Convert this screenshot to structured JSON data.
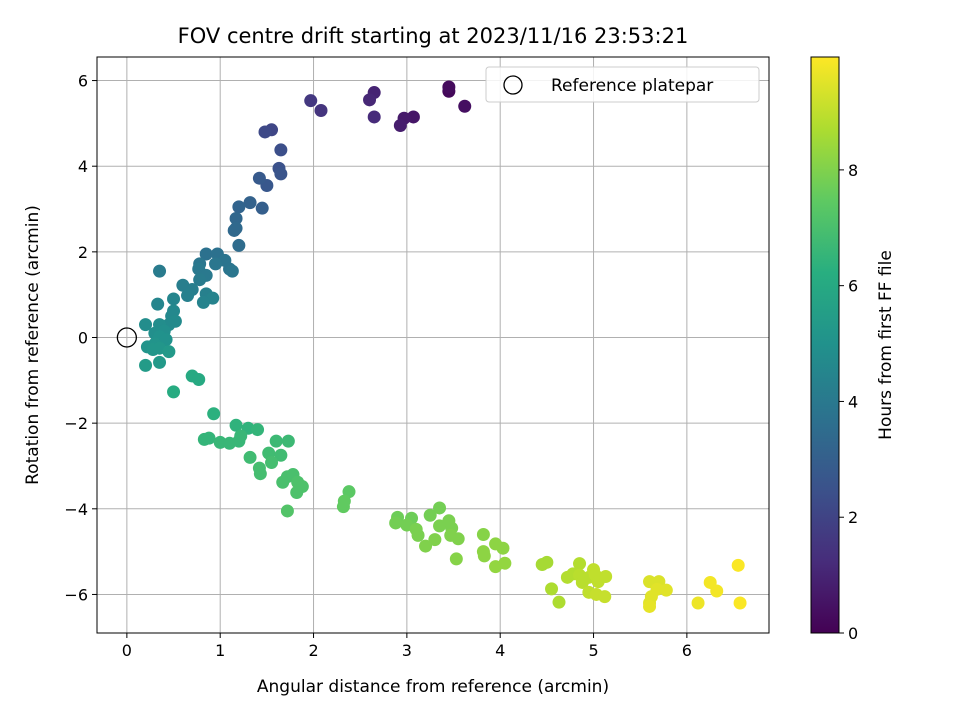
{
  "chart_data": {
    "type": "scatter",
    "title": "FOV centre drift starting at 2023/11/16 23:53:21",
    "xlabel": "Angular distance from reference (arcmin)",
    "ylabel": "Rotation from reference (arcmin)",
    "xlim": [
      -0.32,
      6.88
    ],
    "ylim": [
      -6.9,
      6.55
    ],
    "xticks": [
      0,
      1,
      2,
      3,
      4,
      5,
      6
    ],
    "yticks": [
      -6,
      -4,
      -2,
      0,
      2,
      4,
      6
    ],
    "grid": true,
    "legend": {
      "location": "upper right",
      "label": "Reference platepar"
    },
    "reference_point": {
      "x": 0,
      "y": 0
    },
    "colorbar": {
      "label": "Hours from first FF file",
      "range": [
        0,
        9.95
      ],
      "ticks": [
        0,
        2,
        4,
        6,
        8
      ],
      "colormap": "viridis"
    },
    "points": [
      {
        "x": 3.45,
        "y": 5.75,
        "t": 0.2
      },
      {
        "x": 3.45,
        "y": 5.85,
        "t": 0.3
      },
      {
        "x": 3.62,
        "y": 5.4,
        "t": 0.4
      },
      {
        "x": 3.07,
        "y": 5.15,
        "t": 0.6
      },
      {
        "x": 2.97,
        "y": 5.12,
        "t": 0.7
      },
      {
        "x": 2.93,
        "y": 4.95,
        "t": 0.8
      },
      {
        "x": 2.65,
        "y": 5.72,
        "t": 1.0
      },
      {
        "x": 2.6,
        "y": 5.55,
        "t": 1.1
      },
      {
        "x": 2.65,
        "y": 5.15,
        "t": 1.2
      },
      {
        "x": 2.08,
        "y": 5.3,
        "t": 1.5
      },
      {
        "x": 1.97,
        "y": 5.53,
        "t": 1.6
      },
      {
        "x": 1.55,
        "y": 4.85,
        "t": 2.1
      },
      {
        "x": 1.48,
        "y": 4.8,
        "t": 2.2
      },
      {
        "x": 1.65,
        "y": 4.38,
        "t": 2.4
      },
      {
        "x": 1.63,
        "y": 3.95,
        "t": 2.5
      },
      {
        "x": 1.65,
        "y": 3.82,
        "t": 2.6
      },
      {
        "x": 1.5,
        "y": 3.55,
        "t": 2.7
      },
      {
        "x": 1.42,
        "y": 3.72,
        "t": 2.8
      },
      {
        "x": 1.45,
        "y": 3.02,
        "t": 3.0
      },
      {
        "x": 1.32,
        "y": 3.15,
        "t": 3.1
      },
      {
        "x": 1.2,
        "y": 3.05,
        "t": 3.2
      },
      {
        "x": 1.17,
        "y": 2.78,
        "t": 3.3
      },
      {
        "x": 1.15,
        "y": 2.5,
        "t": 3.4
      },
      {
        "x": 1.2,
        "y": 2.15,
        "t": 3.5
      },
      {
        "x": 1.17,
        "y": 2.55,
        "t": 3.4
      },
      {
        "x": 0.85,
        "y": 1.95,
        "t": 3.7
      },
      {
        "x": 0.97,
        "y": 1.95,
        "t": 3.7
      },
      {
        "x": 1.05,
        "y": 1.8,
        "t": 3.8
      },
      {
        "x": 1.1,
        "y": 1.6,
        "t": 3.8
      },
      {
        "x": 0.95,
        "y": 1.72,
        "t": 3.9
      },
      {
        "x": 0.78,
        "y": 1.72,
        "t": 3.9
      },
      {
        "x": 0.77,
        "y": 1.6,
        "t": 4.0
      },
      {
        "x": 0.85,
        "y": 1.45,
        "t": 4.0
      },
      {
        "x": 1.13,
        "y": 1.55,
        "t": 3.9
      },
      {
        "x": 0.35,
        "y": 1.55,
        "t": 4.1
      },
      {
        "x": 0.78,
        "y": 1.35,
        "t": 4.1
      },
      {
        "x": 0.6,
        "y": 1.22,
        "t": 4.2
      },
      {
        "x": 0.7,
        "y": 1.12,
        "t": 4.2
      },
      {
        "x": 0.85,
        "y": 1.02,
        "t": 4.3
      },
      {
        "x": 0.65,
        "y": 0.98,
        "t": 4.3
      },
      {
        "x": 0.92,
        "y": 0.92,
        "t": 4.4
      },
      {
        "x": 0.82,
        "y": 0.82,
        "t": 4.4
      },
      {
        "x": 0.5,
        "y": 0.9,
        "t": 4.5
      },
      {
        "x": 0.33,
        "y": 0.78,
        "t": 4.5
      },
      {
        "x": 0.5,
        "y": 0.62,
        "t": 4.6
      },
      {
        "x": 0.48,
        "y": 0.5,
        "t": 4.6
      },
      {
        "x": 0.52,
        "y": 0.38,
        "t": 4.7
      },
      {
        "x": 0.45,
        "y": 0.3,
        "t": 4.7
      },
      {
        "x": 0.35,
        "y": 0.3,
        "t": 4.8
      },
      {
        "x": 0.2,
        "y": 0.3,
        "t": 4.8
      },
      {
        "x": 0.4,
        "y": 0.15,
        "t": 4.9
      },
      {
        "x": 0.3,
        "y": 0.1,
        "t": 4.9
      },
      {
        "x": 0.35,
        "y": 0.02,
        "t": 5.0
      },
      {
        "x": 0.42,
        "y": -0.05,
        "t": 5.0
      },
      {
        "x": 0.3,
        "y": -0.15,
        "t": 5.1
      },
      {
        "x": 0.22,
        "y": -0.22,
        "t": 5.1
      },
      {
        "x": 0.28,
        "y": -0.28,
        "t": 5.2
      },
      {
        "x": 0.35,
        "y": -0.25,
        "t": 5.2
      },
      {
        "x": 0.45,
        "y": -0.33,
        "t": 5.3
      },
      {
        "x": 0.35,
        "y": -0.58,
        "t": 5.3
      },
      {
        "x": 0.2,
        "y": -0.65,
        "t": 5.4
      },
      {
        "x": 0.7,
        "y": -0.9,
        "t": 6.0
      },
      {
        "x": 0.77,
        "y": -0.98,
        "t": 6.0
      },
      {
        "x": 0.5,
        "y": -1.27,
        "t": 6.1
      },
      {
        "x": 0.93,
        "y": -1.78,
        "t": 6.3
      },
      {
        "x": 1.17,
        "y": -2.05,
        "t": 6.4
      },
      {
        "x": 1.3,
        "y": -2.12,
        "t": 6.4
      },
      {
        "x": 1.4,
        "y": -2.15,
        "t": 6.5
      },
      {
        "x": 0.88,
        "y": -2.35,
        "t": 6.5
      },
      {
        "x": 0.83,
        "y": -2.38,
        "t": 6.5
      },
      {
        "x": 1.0,
        "y": -2.45,
        "t": 6.6
      },
      {
        "x": 1.1,
        "y": -2.47,
        "t": 6.6
      },
      {
        "x": 1.2,
        "y": -2.42,
        "t": 6.6
      },
      {
        "x": 1.22,
        "y": -2.3,
        "t": 6.6
      },
      {
        "x": 1.6,
        "y": -2.42,
        "t": 6.7
      },
      {
        "x": 1.73,
        "y": -2.42,
        "t": 6.7
      },
      {
        "x": 1.32,
        "y": -2.8,
        "t": 6.8
      },
      {
        "x": 1.52,
        "y": -2.7,
        "t": 6.8
      },
      {
        "x": 1.65,
        "y": -2.75,
        "t": 6.8
      },
      {
        "x": 1.55,
        "y": -2.92,
        "t": 6.9
      },
      {
        "x": 1.42,
        "y": -3.05,
        "t": 6.9
      },
      {
        "x": 1.43,
        "y": -3.18,
        "t": 6.9
      },
      {
        "x": 1.72,
        "y": -3.25,
        "t": 7.0
      },
      {
        "x": 1.78,
        "y": -3.2,
        "t": 7.0
      },
      {
        "x": 1.67,
        "y": -3.38,
        "t": 7.0
      },
      {
        "x": 1.83,
        "y": -3.38,
        "t": 7.1
      },
      {
        "x": 1.88,
        "y": -3.48,
        "t": 7.1
      },
      {
        "x": 1.82,
        "y": -3.62,
        "t": 7.1
      },
      {
        "x": 1.72,
        "y": -4.05,
        "t": 7.2
      },
      {
        "x": 2.38,
        "y": -3.6,
        "t": 7.4
      },
      {
        "x": 2.33,
        "y": -3.82,
        "t": 7.5
      },
      {
        "x": 2.32,
        "y": -3.95,
        "t": 7.5
      },
      {
        "x": 2.9,
        "y": -4.2,
        "t": 7.7
      },
      {
        "x": 3.05,
        "y": -4.22,
        "t": 7.7
      },
      {
        "x": 3.35,
        "y": -3.98,
        "t": 7.8
      },
      {
        "x": 3.25,
        "y": -4.15,
        "t": 7.8
      },
      {
        "x": 2.88,
        "y": -4.33,
        "t": 7.8
      },
      {
        "x": 3.0,
        "y": -4.38,
        "t": 7.8
      },
      {
        "x": 3.1,
        "y": -4.48,
        "t": 7.9
      },
      {
        "x": 3.12,
        "y": -4.62,
        "t": 7.9
      },
      {
        "x": 3.35,
        "y": -4.4,
        "t": 7.9
      },
      {
        "x": 3.45,
        "y": -4.28,
        "t": 7.9
      },
      {
        "x": 3.48,
        "y": -4.45,
        "t": 7.9
      },
      {
        "x": 3.47,
        "y": -4.62,
        "t": 8.0
      },
      {
        "x": 3.55,
        "y": -4.7,
        "t": 8.0
      },
      {
        "x": 3.3,
        "y": -4.72,
        "t": 8.0
      },
      {
        "x": 3.2,
        "y": -4.87,
        "t": 8.0
      },
      {
        "x": 3.53,
        "y": -5.17,
        "t": 8.1
      },
      {
        "x": 3.82,
        "y": -4.6,
        "t": 8.1
      },
      {
        "x": 3.95,
        "y": -4.82,
        "t": 8.2
      },
      {
        "x": 4.03,
        "y": -4.92,
        "t": 8.2
      },
      {
        "x": 3.82,
        "y": -5.0,
        "t": 8.2
      },
      {
        "x": 3.83,
        "y": -5.1,
        "t": 8.2
      },
      {
        "x": 4.05,
        "y": -5.27,
        "t": 8.3
      },
      {
        "x": 3.95,
        "y": -5.35,
        "t": 8.3
      },
      {
        "x": 4.45,
        "y": -5.3,
        "t": 8.6
      },
      {
        "x": 4.5,
        "y": -5.25,
        "t": 8.6
      },
      {
        "x": 4.55,
        "y": -5.87,
        "t": 8.7
      },
      {
        "x": 4.63,
        "y": -6.18,
        "t": 8.7
      },
      {
        "x": 4.72,
        "y": -5.6,
        "t": 8.8
      },
      {
        "x": 4.78,
        "y": -5.52,
        "t": 8.8
      },
      {
        "x": 4.85,
        "y": -5.28,
        "t": 8.8
      },
      {
        "x": 4.85,
        "y": -5.55,
        "t": 8.9
      },
      {
        "x": 4.88,
        "y": -5.72,
        "t": 8.9
      },
      {
        "x": 4.95,
        "y": -5.6,
        "t": 8.9
      },
      {
        "x": 5.0,
        "y": -5.42,
        "t": 9.0
      },
      {
        "x": 5.02,
        "y": -5.55,
        "t": 9.0
      },
      {
        "x": 5.05,
        "y": -5.7,
        "t": 9.0
      },
      {
        "x": 5.13,
        "y": -5.58,
        "t": 9.0
      },
      {
        "x": 4.95,
        "y": -5.95,
        "t": 9.0
      },
      {
        "x": 5.03,
        "y": -6.0,
        "t": 9.1
      },
      {
        "x": 5.12,
        "y": -6.05,
        "t": 9.1
      },
      {
        "x": 5.6,
        "y": -5.7,
        "t": 9.4
      },
      {
        "x": 5.7,
        "y": -5.7,
        "t": 9.4
      },
      {
        "x": 5.68,
        "y": -5.88,
        "t": 9.5
      },
      {
        "x": 5.78,
        "y": -5.9,
        "t": 9.5
      },
      {
        "x": 5.62,
        "y": -6.05,
        "t": 9.5
      },
      {
        "x": 5.6,
        "y": -6.2,
        "t": 9.5
      },
      {
        "x": 5.6,
        "y": -6.28,
        "t": 9.6
      },
      {
        "x": 6.12,
        "y": -6.2,
        "t": 9.7
      },
      {
        "x": 6.25,
        "y": -5.72,
        "t": 9.8
      },
      {
        "x": 6.32,
        "y": -5.92,
        "t": 9.8
      },
      {
        "x": 6.55,
        "y": -5.32,
        "t": 9.9
      },
      {
        "x": 6.57,
        "y": -6.2,
        "t": 9.9
      }
    ]
  }
}
